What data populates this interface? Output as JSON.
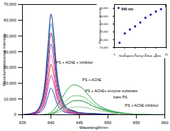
{
  "chart_data": [
    {
      "type": "line",
      "x_label": "Wavelength/nm",
      "y_label": "Photoluminescence intensity",
      "x": [
        635,
        637,
        638,
        639,
        639.5,
        640,
        640.5,
        641,
        642,
        643,
        644,
        645,
        648,
        652,
        656,
        660
      ],
      "xlim": [
        635,
        660
      ],
      "xticks": [
        635,
        640,
        645,
        650,
        655,
        660
      ],
      "ylim": [
        0,
        70000
      ],
      "yticks": [
        0,
        10000,
        20000,
        30000,
        40000,
        50000,
        60000,
        70000
      ],
      "grid": false,
      "series": [
        {
          "color": "#2040c0",
          "values": [
            0,
            340,
            1360,
            5950,
            11900,
            17000,
            13600,
            7650,
            2550,
            1020,
            680,
            340,
            170,
            0,
            0,
            0
          ]
        },
        {
          "color": "#b030b0",
          "values": [
            0,
            500,
            2000,
            8750,
            17500,
            25000,
            20000,
            11250,
            3750,
            1500,
            1000,
            500,
            250,
            0,
            0,
            0
          ]
        },
        {
          "color": "#e02020",
          "values": [
            0,
            640,
            2560,
            11200,
            22400,
            32000,
            25600,
            14400,
            4800,
            1920,
            1280,
            640,
            320,
            0,
            0,
            0
          ]
        },
        {
          "color": "#ff70b0",
          "values": [
            0,
            760,
            3040,
            13300,
            26600,
            38000,
            30400,
            17100,
            5700,
            2280,
            1520,
            760,
            380,
            0,
            0,
            0
          ]
        },
        {
          "color": "#8040c0",
          "values": [
            0,
            900,
            3600,
            15750,
            31500,
            45000,
            36000,
            20250,
            6750,
            2700,
            1800,
            900,
            450,
            0,
            0,
            0
          ]
        },
        {
          "color": "#a01030",
          "values": [
            0,
            1040,
            4160,
            18200,
            36400,
            52000,
            41600,
            23400,
            7800,
            3120,
            2080,
            1040,
            520,
            0,
            0,
            0
          ]
        },
        {
          "color": "#30b0e0",
          "values": [
            0,
            1160,
            4640,
            20300,
            40600,
            58000,
            46400,
            26100,
            8700,
            3480,
            2320,
            1160,
            580,
            0,
            0,
            0
          ]
        },
        {
          "color": "#102080",
          "values": [
            0,
            1280,
            5120,
            22400,
            44800,
            64000,
            51200,
            28800,
            9600,
            3840,
            2560,
            1280,
            640,
            0,
            0,
            0
          ]
        },
        {
          "color": "#20a040",
          "values": [
            0,
            0,
            0,
            200,
            500,
            1500,
            3000,
            5500,
            11000,
            16500,
            19000,
            18000,
            7000,
            1500,
            200,
            0
          ]
        },
        {
          "color": "#60c060",
          "values": [
            0,
            0,
            0,
            100,
            300,
            800,
            1500,
            3000,
            6500,
            10000,
            12000,
            12000,
            5500,
            1200,
            200,
            0
          ]
        },
        {
          "color": "#108030",
          "values": [
            0,
            0,
            0,
            100,
            200,
            500,
            1000,
            2000,
            4500,
            7000,
            8800,
            9000,
            4500,
            1000,
            150,
            0
          ]
        },
        {
          "color": "#90c890",
          "values": [
            0,
            0,
            0,
            0,
            100,
            300,
            600,
            1200,
            2500,
            4000,
            4800,
            5000,
            3000,
            700,
            100,
            0
          ]
        }
      ],
      "annotations": [
        {
          "text": "PS + AChE + inhibitor",
          "x": 640.9,
          "y": 33000
        },
        {
          "text": "PS + AChE",
          "x": 645.5,
          "y": 22000
        },
        {
          "text": "PS + AChE+ enzyme substrate",
          "x": 646,
          "y": 15000
        },
        {
          "text": "bare PS",
          "x": 651,
          "y": 11000
        },
        {
          "text": "PS + AChE inhibitor",
          "x": 653,
          "y": 6000
        }
      ]
    },
    {
      "type": "scatter",
      "x_label": "Neostigmine methyl sulfate, μg/mL",
      "y_label": "Photoluminescence intensity",
      "xlim": [
        0,
        10
      ],
      "xticks": [
        0,
        2,
        4,
        6,
        8,
        10
      ],
      "ylim": [
        10000,
        65000
      ],
      "yticks": [
        10000,
        20000,
        30000,
        40000,
        50000,
        60000
      ],
      "legend": "top-left",
      "series": [
        {
          "name": "640 nm",
          "color": "#1a1aa0",
          "marker": "square",
          "x": [
            1,
            2,
            3,
            4,
            5,
            6,
            7,
            8,
            9,
            10
          ],
          "values": [
            16000,
            28000,
            33000,
            37000,
            42000,
            48000,
            52000,
            56000,
            59000,
            63000
          ]
        }
      ]
    }
  ]
}
